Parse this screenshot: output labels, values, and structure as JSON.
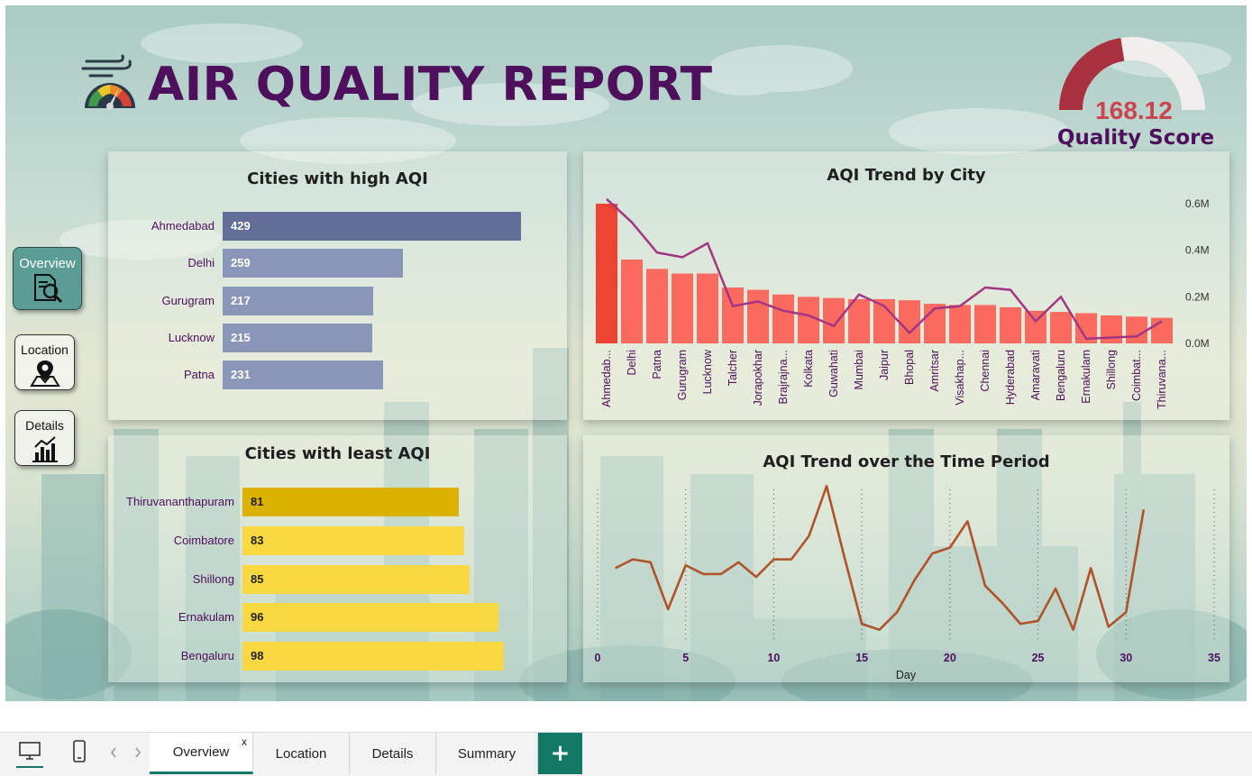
{
  "report": {
    "title": "AIR QUALITY REPORT",
    "logo_icon": "air-quality-gauge-icon"
  },
  "gauge": {
    "value": "168.12",
    "label": "Quality Score",
    "fraction": 0.45,
    "fill_color": "#a8313f",
    "track_color": "#f2eeee"
  },
  "nav": {
    "overview": {
      "label": "Overview",
      "icon": "search-document-icon"
    },
    "location": {
      "label": "Location",
      "icon": "map-pin-icon"
    },
    "details": {
      "label": "Details",
      "icon": "bar-chart-icon"
    }
  },
  "tabs": {
    "overview": "Overview",
    "close": "x",
    "location": "Location",
    "details": "Details",
    "summary": "Summary",
    "add": "+"
  },
  "colors": {
    "title": "#4e0f5c",
    "high_bar_top": "#626e98",
    "high_bar": "#8a96b8",
    "least_bar_top": "#dbb200",
    "least_bar": "#fad841",
    "trend_bar_top": "#ee4433",
    "trend_bar": "#fa6a5e",
    "trend_line": "#a43585",
    "time_line": "#b0532a",
    "accent": "#117865"
  },
  "chart_data": [
    {
      "type": "bar",
      "orientation": "horizontal",
      "title": "Cities with high AQI",
      "categories": [
        "Ahmedabad",
        "Delhi",
        "Gurugram",
        "Lucknow",
        "Patna"
      ],
      "values": [
        429,
        259,
        217,
        215,
        231
      ],
      "labels": [
        "429",
        "259",
        "217",
        "215",
        "231"
      ],
      "xlim": [
        0,
        429
      ]
    },
    {
      "type": "bar",
      "orientation": "horizontal",
      "title": "Cities with least AQI",
      "categories": [
        "Thiruvananthapuram",
        "Coimbatore",
        "Shillong",
        "Ernakulam",
        "Bengaluru"
      ],
      "values": [
        81,
        83,
        85,
        96,
        98
      ],
      "labels": [
        "81",
        "83",
        "85",
        "96",
        "98"
      ],
      "xlim": [
        0,
        98
      ]
    },
    {
      "type": "bar",
      "title": "AQI Trend by City",
      "categories": [
        "Ahmedab...",
        "Delhi",
        "Patna",
        "Gurugram",
        "Lucknow",
        "Talcher",
        "Jorapokhar",
        "Brajrajna...",
        "Kolkata",
        "Guwahati",
        "Mumbai",
        "Jaipur",
        "Bhopal",
        "Amritsar",
        "Visakhap...",
        "Chennai",
        "Hyderabad",
        "Amaravati",
        "Bengaluru",
        "Ernakulam",
        "Shillong",
        "Coimbat...",
        "Thiruvana..."
      ],
      "series": [
        {
          "name": "AQI total",
          "type": "bar",
          "values": [
            0.6,
            0.36,
            0.32,
            0.3,
            0.3,
            0.24,
            0.23,
            0.21,
            0.2,
            0.195,
            0.19,
            0.19,
            0.185,
            0.17,
            0.165,
            0.165,
            0.155,
            0.14,
            0.135,
            0.13,
            0.12,
            0.115,
            0.11
          ]
        },
        {
          "name": "AQI line",
          "type": "line",
          "values": [
            0.62,
            0.52,
            0.39,
            0.37,
            0.43,
            0.16,
            0.18,
            0.14,
            0.12,
            0.075,
            0.21,
            0.16,
            0.045,
            0.15,
            0.16,
            0.24,
            0.23,
            0.095,
            0.2,
            0.02,
            0.025,
            0.03,
            0.095
          ]
        }
      ],
      "yticks": [
        "0.0M",
        "0.2M",
        "0.4M",
        "0.6M"
      ],
      "ytick_values": [
        0,
        0.2,
        0.4,
        0.6
      ],
      "ylim": [
        0,
        0.6
      ],
      "yunit": "M"
    },
    {
      "type": "line",
      "title": "AQI Trend over the Time Period",
      "xlabel": "Day",
      "x": [
        1,
        2,
        3,
        4,
        5,
        6,
        7,
        8,
        9,
        10,
        11,
        12,
        13,
        14,
        15,
        16,
        17,
        18,
        19,
        20,
        21,
        22,
        23,
        24,
        25,
        26,
        27,
        28,
        29,
        30,
        31
      ],
      "values": [
        169,
        172,
        171,
        155,
        170,
        167,
        167,
        171,
        166,
        172,
        172,
        180,
        197,
        173,
        150,
        148,
        154,
        165,
        174,
        176,
        185,
        163,
        157,
        150,
        151,
        162,
        148,
        169,
        149,
        154,
        189
      ],
      "xticks": [
        "0",
        "5",
        "10",
        "15",
        "20",
        "25",
        "30",
        "35"
      ],
      "xtick_values": [
        0,
        5,
        10,
        15,
        20,
        25,
        30,
        35
      ],
      "xlim": [
        0,
        35
      ],
      "ylim": [
        143,
        202
      ]
    }
  ]
}
